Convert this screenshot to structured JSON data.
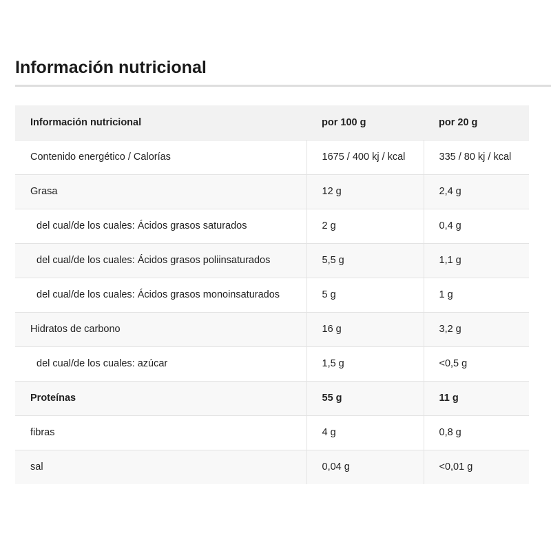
{
  "title": "Información nutricional",
  "table": {
    "headers": [
      "Información nutricional",
      "por 100 g",
      "por 20 g"
    ],
    "rows": [
      {
        "label": "Contenido energético / Calorías",
        "per100": "1675 / 400 kj / kcal",
        "per20": "335 / 80 kj / kcal",
        "indent": false,
        "bold": false
      },
      {
        "label": "Grasa",
        "per100": "12 g",
        "per20": "2,4 g",
        "indent": false,
        "bold": false
      },
      {
        "label": "del cual/de los cuales: Ácidos grasos saturados",
        "per100": "2 g",
        "per20": "0,4 g",
        "indent": true,
        "bold": false
      },
      {
        "label": "del cual/de los cuales: Ácidos grasos poliinsaturados",
        "per100": "5,5 g",
        "per20": "1,1 g",
        "indent": true,
        "bold": false
      },
      {
        "label": "del cual/de los cuales: Ácidos grasos monoinsaturados",
        "per100": "5 g",
        "per20": "1 g",
        "indent": true,
        "bold": false
      },
      {
        "label": "Hidratos de carbono",
        "per100": "16 g",
        "per20": "3,2 g",
        "indent": false,
        "bold": false
      },
      {
        "label": "del cual/de los cuales: azúcar",
        "per100": "1,5 g",
        "per20": "<0,5 g",
        "indent": true,
        "bold": false
      },
      {
        "label": "Proteínas",
        "per100": "55 g",
        "per20": "11 g",
        "indent": false,
        "bold": true
      },
      {
        "label": "fibras",
        "per100": "4 g",
        "per20": "0,8 g",
        "indent": false,
        "bold": false
      },
      {
        "label": "sal",
        "per100": "0,04 g",
        "per20": "<0,01 g",
        "indent": false,
        "bold": false
      }
    ]
  }
}
